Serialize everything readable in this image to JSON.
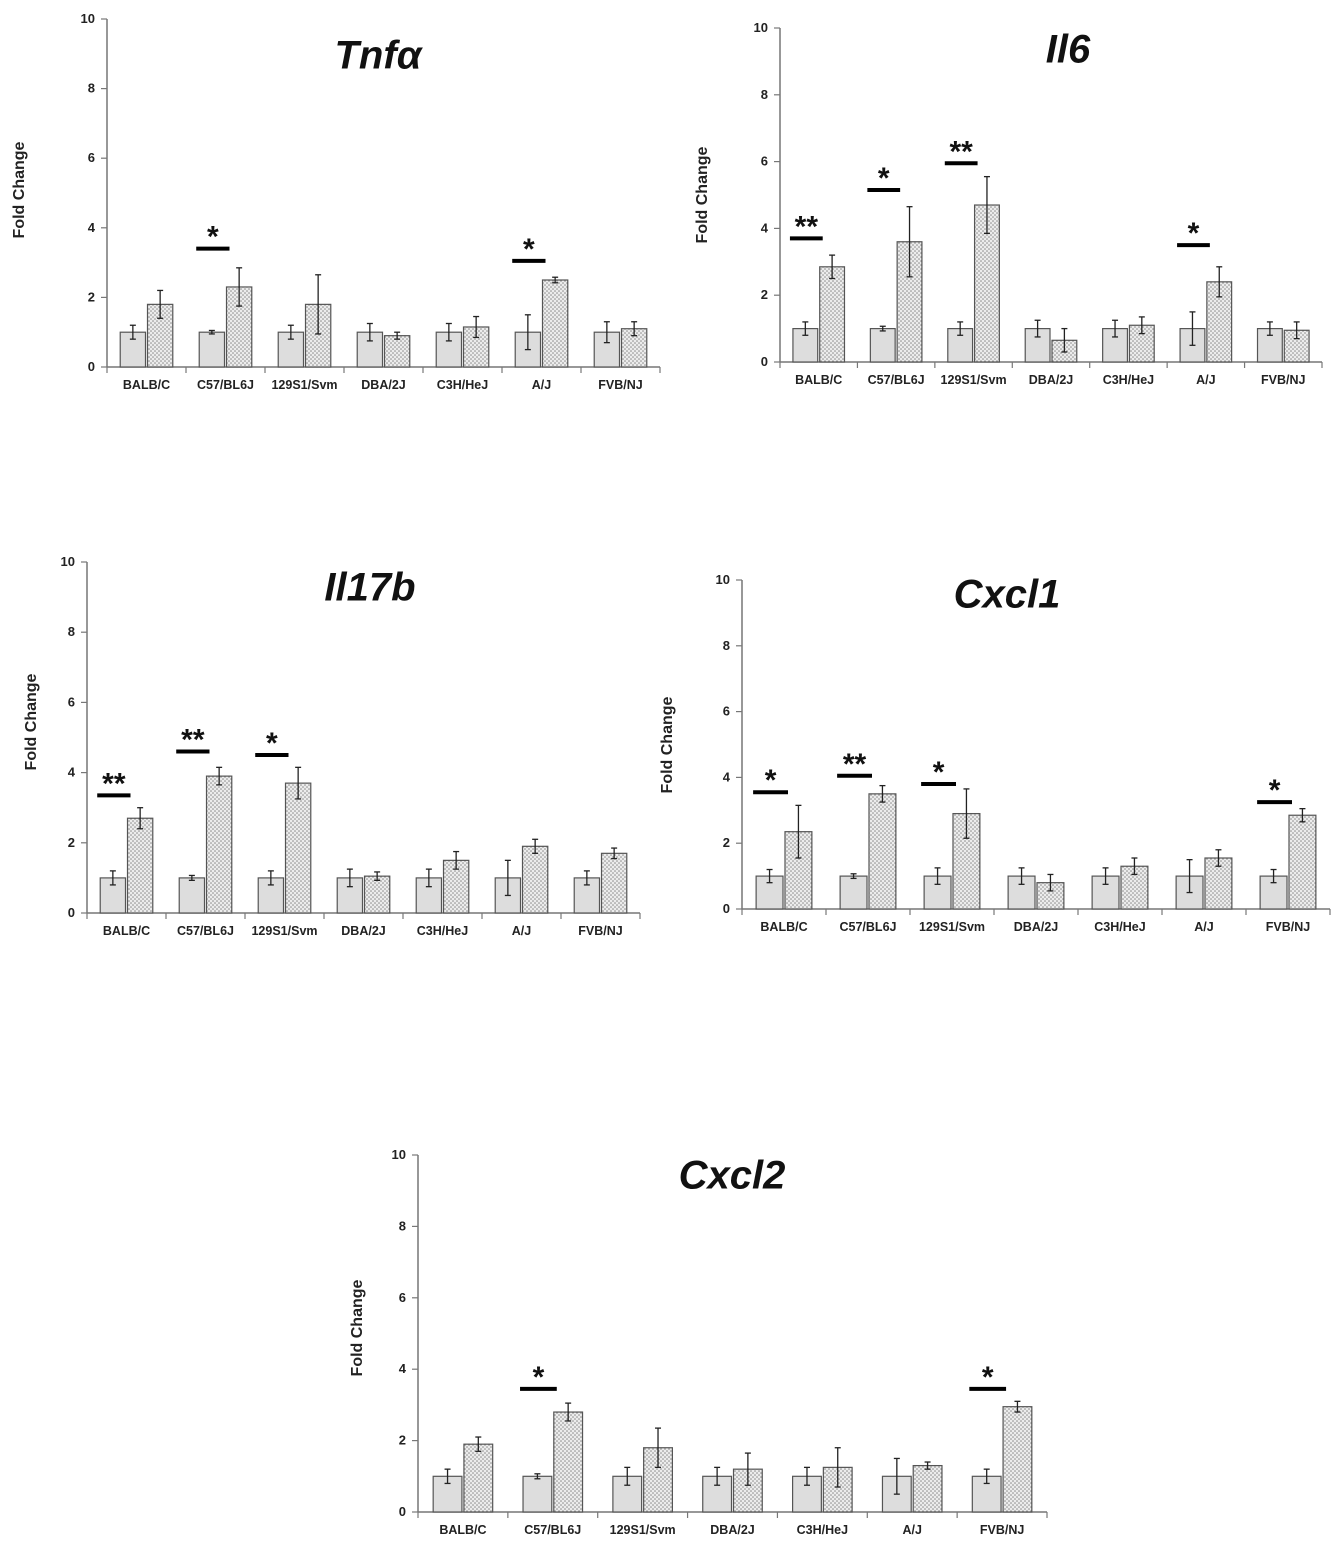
{
  "chart_data": [
    {
      "type": "bar",
      "title": "Tnfα",
      "ylabel": "Fold Change",
      "ylim": [
        0,
        10
      ],
      "yticks": [
        0,
        2,
        4,
        6,
        8,
        10
      ],
      "categories": [
        "BALB/C",
        "C57/BL6J",
        "129S1/Svm",
        "DBA/2J",
        "C3H/HeJ",
        "A/J",
        "FVB/NJ"
      ],
      "series": [
        {
          "values": [
            1.0,
            1.0,
            1.0,
            1.0,
            1.0,
            1.0,
            1.0
          ],
          "errors": [
            0.2,
            0.05,
            0.2,
            0.25,
            0.25,
            0.5,
            0.3
          ],
          "color": "#dddddd"
        },
        {
          "values": [
            1.8,
            2.3,
            1.8,
            0.9,
            1.15,
            2.5,
            1.1
          ],
          "errors": [
            0.4,
            0.55,
            0.85,
            0.1,
            0.3,
            0.08,
            0.2
          ],
          "color": "#d0d0d0"
        }
      ],
      "annotations": [
        {
          "category": "C57/BL6J",
          "text": "*",
          "bar_y": 3.4
        },
        {
          "category": "A/J",
          "text": "*",
          "bar_y": 3.05
        }
      ]
    },
    {
      "type": "bar",
      "title": "Il6",
      "ylabel": "Fold Change",
      "ylim": [
        0,
        10
      ],
      "yticks": [
        0,
        2,
        4,
        6,
        8,
        10
      ],
      "categories": [
        "BALB/C",
        "C57/BL6J",
        "129S1/Svm",
        "DBA/2J",
        "C3H/HeJ",
        "A/J",
        "FVB/NJ"
      ],
      "series": [
        {
          "values": [
            1.0,
            1.0,
            1.0,
            1.0,
            1.0,
            1.0,
            1.0
          ],
          "errors": [
            0.2,
            0.07,
            0.2,
            0.25,
            0.25,
            0.5,
            0.2
          ],
          "color": "#dddddd"
        },
        {
          "values": [
            2.85,
            3.6,
            4.7,
            0.65,
            1.1,
            2.4,
            0.95
          ],
          "errors": [
            0.35,
            1.05,
            0.85,
            0.35,
            0.25,
            0.45,
            0.25
          ],
          "color": "#d0d0d0"
        }
      ],
      "annotations": [
        {
          "category": "BALB/C",
          "text": "**",
          "bar_y": 3.7
        },
        {
          "category": "C57/BL6J",
          "text": "*",
          "bar_y": 5.15
        },
        {
          "category": "129S1/Svm",
          "text": "**",
          "bar_y": 5.95
        },
        {
          "category": "A/J",
          "text": "*",
          "bar_y": 3.5
        }
      ]
    },
    {
      "type": "bar",
      "title": "Il17b",
      "ylabel": "Fold Change",
      "ylim": [
        0,
        10
      ],
      "yticks": [
        0,
        2,
        4,
        6,
        8,
        10
      ],
      "categories": [
        "BALB/C",
        "C57/BL6J",
        "129S1/Svm",
        "DBA/2J",
        "C3H/HeJ",
        "A/J",
        "FVB/NJ"
      ],
      "series": [
        {
          "values": [
            1.0,
            1.0,
            1.0,
            1.0,
            1.0,
            1.0,
            1.0
          ],
          "errors": [
            0.2,
            0.07,
            0.2,
            0.25,
            0.25,
            0.5,
            0.2
          ],
          "color": "#dddddd"
        },
        {
          "values": [
            2.7,
            3.9,
            3.7,
            1.05,
            1.5,
            1.9,
            1.7
          ],
          "errors": [
            0.3,
            0.25,
            0.45,
            0.12,
            0.25,
            0.2,
            0.15
          ],
          "color": "#d0d0d0"
        }
      ],
      "annotations": [
        {
          "category": "BALB/C",
          "text": "**",
          "bar_y": 3.35
        },
        {
          "category": "C57/BL6J",
          "text": "**",
          "bar_y": 4.6
        },
        {
          "category": "129S1/Svm",
          "text": "*",
          "bar_y": 4.5
        }
      ]
    },
    {
      "type": "bar",
      "title": "Cxcl1",
      "ylabel": "Fold Change",
      "ylim": [
        0,
        10
      ],
      "yticks": [
        0,
        2,
        4,
        6,
        8,
        10
      ],
      "categories": [
        "BALB/C",
        "C57/BL6J",
        "129S1/Svm",
        "DBA/2J",
        "C3H/HeJ",
        "A/J",
        "FVB/NJ"
      ],
      "series": [
        {
          "values": [
            1.0,
            1.0,
            1.0,
            1.0,
            1.0,
            1.0,
            1.0
          ],
          "errors": [
            0.2,
            0.07,
            0.25,
            0.25,
            0.25,
            0.5,
            0.2
          ],
          "color": "#dddddd"
        },
        {
          "values": [
            2.35,
            3.5,
            2.9,
            0.8,
            1.3,
            1.55,
            2.85
          ],
          "errors": [
            0.8,
            0.25,
            0.75,
            0.25,
            0.25,
            0.25,
            0.2
          ],
          "color": "#d0d0d0"
        }
      ],
      "annotations": [
        {
          "category": "BALB/C",
          "text": "*",
          "bar_y": 3.55
        },
        {
          "category": "C57/BL6J",
          "text": "**",
          "bar_y": 4.05
        },
        {
          "category": "129S1/Svm",
          "text": "*",
          "bar_y": 3.8
        },
        {
          "category": "FVB/NJ",
          "text": "*",
          "bar_y": 3.25
        }
      ]
    },
    {
      "type": "bar",
      "title": "Cxcl2",
      "ylabel": "Fold Change",
      "ylim": [
        0,
        10
      ],
      "yticks": [
        0,
        2,
        4,
        6,
        8,
        10
      ],
      "categories": [
        "BALB/C",
        "C57/BL6J",
        "129S1/Svm",
        "DBA/2J",
        "C3H/HeJ",
        "A/J",
        "FVB/NJ"
      ],
      "series": [
        {
          "values": [
            1.0,
            1.0,
            1.0,
            1.0,
            1.0,
            1.0,
            1.0
          ],
          "errors": [
            0.2,
            0.07,
            0.25,
            0.25,
            0.25,
            0.5,
            0.2
          ],
          "color": "#dddddd"
        },
        {
          "values": [
            1.9,
            2.8,
            1.8,
            1.2,
            1.25,
            1.3,
            2.95
          ],
          "errors": [
            0.2,
            0.25,
            0.55,
            0.45,
            0.55,
            0.1,
            0.15
          ],
          "color": "#d0d0d0"
        }
      ],
      "annotations": [
        {
          "category": "C57/BL6J",
          "text": "*",
          "bar_y": 3.45
        },
        {
          "category": "FVB/NJ",
          "text": "*",
          "bar_y": 3.45
        }
      ]
    }
  ]
}
